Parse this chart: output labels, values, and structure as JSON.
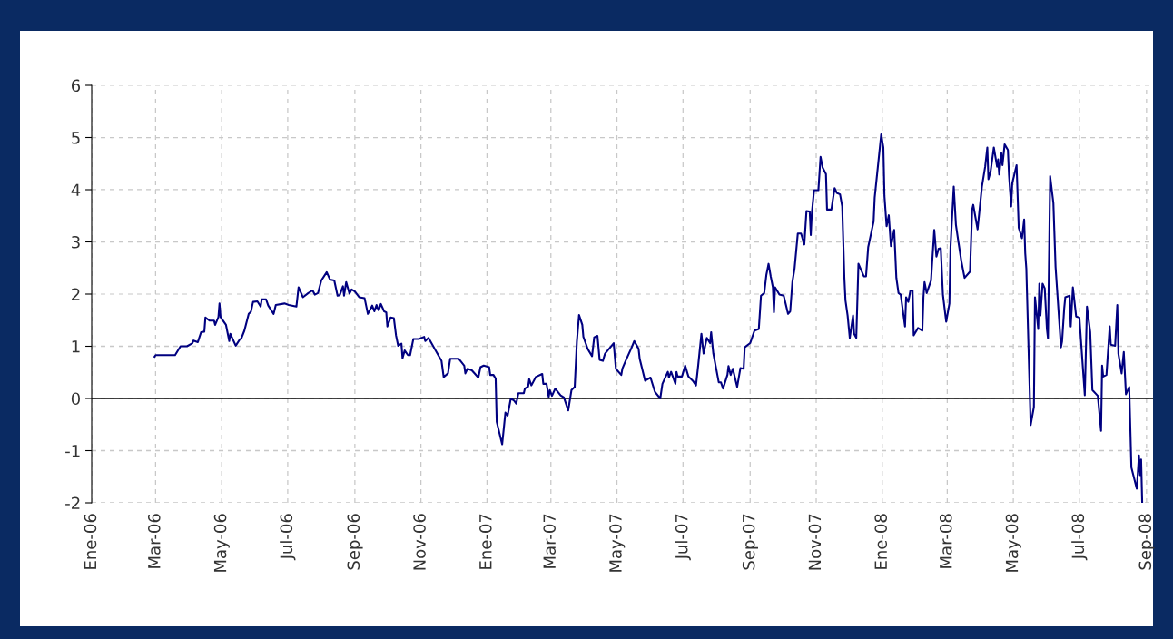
{
  "chart_data": {
    "type": "line",
    "x": [
      "2006-02-28",
      "2006-03-01",
      "2006-03-19",
      "2006-03-24",
      "2006-03-30",
      "2006-04-04",
      "2006-04-05",
      "2006-04-09",
      "2006-04-12",
      "2006-04-15",
      "2006-04-16",
      "2006-04-20",
      "2006-04-24",
      "2006-04-25",
      "2006-04-28",
      "2006-04-29",
      "2006-04-30",
      "2006-05-05",
      "2006-05-08",
      "2006-05-09",
      "2006-05-14",
      "2006-05-18",
      "2006-05-19",
      "2006-05-22",
      "2006-05-26",
      "2006-05-28",
      "2006-05-30",
      "2006-06-03",
      "2006-06-06",
      "2006-06-07",
      "2006-06-11",
      "2006-06-13",
      "2006-06-18",
      "2006-06-20",
      "2006-06-28",
      "2006-07-02",
      "2006-07-09",
      "2006-07-11",
      "2006-07-15",
      "2006-07-20",
      "2006-07-24",
      "2006-07-26",
      "2006-07-29",
      "2006-08-01",
      "2006-08-06",
      "2006-08-09",
      "2006-08-13",
      "2006-08-16",
      "2006-08-18",
      "2006-08-21",
      "2006-08-22",
      "2006-08-24",
      "2006-08-27",
      "2006-08-29",
      "2006-09-01",
      "2006-09-05",
      "2006-09-10",
      "2006-09-13",
      "2006-09-17",
      "2006-09-19",
      "2006-09-21",
      "2006-09-23",
      "2006-09-25",
      "2006-09-28",
      "2006-09-30",
      "2006-10-01",
      "2006-10-04",
      "2006-10-07",
      "2006-10-09",
      "2006-10-11",
      "2006-10-14",
      "2006-10-15",
      "2006-10-17",
      "2006-10-20",
      "2006-10-22",
      "2006-10-25",
      "2006-10-30",
      "2006-11-04",
      "2006-11-05",
      "2006-11-08",
      "2006-11-17",
      "2006-11-20",
      "2006-11-22",
      "2006-11-26",
      "2006-11-28",
      "2006-12-06",
      "2006-12-11",
      "2006-12-12",
      "2006-12-14",
      "2006-12-18",
      "2006-12-24",
      "2006-12-26",
      "2006-12-29",
      "2007-01-03",
      "2007-01-04",
      "2007-01-07",
      "2007-01-09",
      "2007-01-10",
      "2007-01-15",
      "2007-01-18",
      "2007-01-20",
      "2007-01-23",
      "2007-01-26",
      "2007-01-28",
      "2007-01-30",
      "2007-02-04",
      "2007-02-05",
      "2007-02-08",
      "2007-02-09",
      "2007-02-11",
      "2007-02-15",
      "2007-02-21",
      "2007-02-22",
      "2007-02-25",
      "2007-02-27",
      "2007-02-28",
      "2007-03-02",
      "2007-03-05",
      "2007-03-10",
      "2007-03-13",
      "2007-03-17",
      "2007-03-20",
      "2007-03-23",
      "2007-03-25",
      "2007-03-27",
      "2007-03-30",
      "2007-03-31",
      "2007-04-04",
      "2007-04-08",
      "2007-04-10",
      "2007-04-13",
      "2007-04-15",
      "2007-04-18",
      "2007-04-20",
      "2007-04-28",
      "2007-04-30",
      "2007-05-05",
      "2007-05-06",
      "2007-05-09",
      "2007-05-14",
      "2007-05-17",
      "2007-05-21",
      "2007-05-22",
      "2007-05-27",
      "2007-06-01",
      "2007-06-05",
      "2007-06-10",
      "2007-06-12",
      "2007-06-17",
      "2007-06-18",
      "2007-06-20",
      "2007-06-24",
      "2007-06-25",
      "2007-06-26",
      "2007-06-30",
      "2007-07-03",
      "2007-07-06",
      "2007-07-10",
      "2007-07-13",
      "2007-07-15",
      "2007-07-18",
      "2007-07-20",
      "2007-07-23",
      "2007-07-26",
      "2007-07-27",
      "2007-07-29",
      "2007-08-03",
      "2007-08-05",
      "2007-08-07",
      "2007-08-11",
      "2007-08-12",
      "2007-08-14",
      "2007-08-16",
      "2007-08-20",
      "2007-08-23",
      "2007-08-26",
      "2007-08-27",
      "2007-09-01",
      "2007-09-05",
      "2007-09-09",
      "2007-09-11",
      "2007-09-14",
      "2007-09-16",
      "2007-09-18",
      "2007-09-20",
      "2007-09-22",
      "2007-09-23",
      "2007-09-24",
      "2007-09-28",
      "2007-10-02",
      "2007-10-06",
      "2007-10-08",
      "2007-10-10",
      "2007-10-12",
      "2007-10-15",
      "2007-10-18",
      "2007-10-21",
      "2007-10-23",
      "2007-10-26",
      "2007-10-27",
      "2007-10-28",
      "2007-10-30",
      "2007-11-03",
      "2007-11-05",
      "2007-11-07",
      "2007-11-10",
      "2007-11-11",
      "2007-11-15",
      "2007-11-18",
      "2007-11-20",
      "2007-11-23",
      "2007-11-25",
      "2007-11-27",
      "2007-11-28",
      "2007-11-30",
      "2007-12-02",
      "2007-12-05",
      "2007-12-06",
      "2007-12-08",
      "2007-12-10",
      "2007-12-15",
      "2007-12-17",
      "2007-12-19",
      "2007-12-24",
      "2007-12-25",
      "2007-12-31",
      "2008-01-02",
      "2008-01-03",
      "2008-01-05",
      "2008-01-07",
      "2008-01-09",
      "2008-01-12",
      "2008-01-14",
      "2008-01-16",
      "2008-01-18",
      "2008-01-22",
      "2008-01-23",
      "2008-01-25",
      "2008-01-27",
      "2008-01-29",
      "2008-01-30",
      "2008-02-03",
      "2008-02-07",
      "2008-02-08",
      "2008-02-09",
      "2008-02-11",
      "2008-02-15",
      "2008-02-18",
      "2008-02-20",
      "2008-02-22",
      "2008-02-24",
      "2008-02-26",
      "2008-02-29",
      "2008-03-03",
      "2008-03-04",
      "2008-03-07",
      "2008-03-09",
      "2008-03-11",
      "2008-03-14",
      "2008-03-17",
      "2008-03-22",
      "2008-03-24",
      "2008-03-25",
      "2008-03-29",
      "2008-04-02",
      "2008-04-05",
      "2008-04-07",
      "2008-04-08",
      "2008-04-10",
      "2008-04-13",
      "2008-04-16",
      "2008-04-17",
      "2008-04-18",
      "2008-04-20",
      "2008-04-21",
      "2008-04-23",
      "2008-04-26",
      "2008-04-27",
      "2008-04-29",
      "2008-04-30",
      "2008-05-04",
      "2008-05-06",
      "2008-05-09",
      "2008-05-11",
      "2008-05-12",
      "2008-05-13",
      "2008-05-17",
      "2008-05-20",
      "2008-05-21",
      "2008-05-24",
      "2008-05-25",
      "2008-05-26",
      "2008-05-28",
      "2008-05-30",
      "2008-06-01",
      "2008-06-02",
      "2008-06-04",
      "2008-06-07",
      "2008-06-09",
      "2008-06-14",
      "2008-06-15",
      "2008-06-17",
      "2008-06-18",
      "2008-06-22",
      "2008-06-23",
      "2008-06-25",
      "2008-06-28",
      "2008-07-01",
      "2008-07-06",
      "2008-07-08",
      "2008-07-11",
      "2008-07-13",
      "2008-07-18",
      "2008-07-21",
      "2008-07-22",
      "2008-07-23",
      "2008-07-26",
      "2008-07-29",
      "2008-07-30",
      "2008-08-03",
      "2008-08-05",
      "2008-08-06",
      "2008-08-09",
      "2008-08-11",
      "2008-08-13",
      "2008-08-16",
      "2008-08-18",
      "2008-08-23",
      "2008-08-25",
      "2008-08-26",
      "2008-08-27",
      "2008-08-28"
    ],
    "series": [
      {
        "color": "#000080",
        "values": [
          0.8,
          0.83,
          0.83,
          1.0,
          1.0,
          1.06,
          1.11,
          1.08,
          1.27,
          1.28,
          1.55,
          1.49,
          1.49,
          1.41,
          1.56,
          1.82,
          1.56,
          1.41,
          1.1,
          1.24,
          1.01,
          1.14,
          1.14,
          1.3,
          1.62,
          1.66,
          1.85,
          1.86,
          1.76,
          1.9,
          1.9,
          1.78,
          1.62,
          1.79,
          1.82,
          1.79,
          1.76,
          2.13,
          1.94,
          2.02,
          2.07,
          1.99,
          2.02,
          2.26,
          2.42,
          2.28,
          2.26,
          1.97,
          1.98,
          2.15,
          1.97,
          2.23,
          2.01,
          2.09,
          2.05,
          1.94,
          1.92,
          1.62,
          1.78,
          1.67,
          1.79,
          1.69,
          1.81,
          1.67,
          1.65,
          1.38,
          1.55,
          1.54,
          1.21,
          1.01,
          1.05,
          0.77,
          0.92,
          0.83,
          0.83,
          1.14,
          1.14,
          1.18,
          1.1,
          1.16,
          0.83,
          0.72,
          0.41,
          0.48,
          0.76,
          0.76,
          0.63,
          0.48,
          0.57,
          0.54,
          0.4,
          0.6,
          0.63,
          0.6,
          0.45,
          0.45,
          0.38,
          -0.45,
          -0.88,
          -0.27,
          -0.33,
          0.0,
          -0.04,
          -0.1,
          0.1,
          0.1,
          0.19,
          0.23,
          0.37,
          0.25,
          0.41,
          0.47,
          0.28,
          0.28,
          0.03,
          0.16,
          0.05,
          0.19,
          0.06,
          0.02,
          -0.23,
          0.16,
          0.22,
          1.09,
          1.6,
          1.41,
          1.18,
          0.95,
          0.81,
          1.17,
          1.2,
          0.74,
          0.72,
          0.86,
          1.06,
          0.57,
          0.45,
          0.57,
          0.72,
          0.95,
          1.1,
          0.95,
          0.76,
          0.34,
          0.4,
          0.13,
          0.0,
          0.28,
          0.51,
          0.4,
          0.51,
          0.28,
          0.51,
          0.42,
          0.42,
          0.63,
          0.42,
          0.34,
          0.25,
          0.63,
          1.24,
          0.86,
          1.16,
          1.06,
          1.27,
          0.86,
          0.31,
          0.31,
          0.19,
          0.45,
          0.62,
          0.45,
          0.57,
          0.22,
          0.58,
          0.57,
          0.98,
          1.06,
          1.3,
          1.33,
          1.97,
          2.02,
          2.37,
          2.58,
          2.34,
          2.13,
          1.65,
          2.13,
          1.99,
          1.97,
          1.62,
          1.67,
          2.23,
          2.49,
          3.16,
          3.16,
          2.95,
          3.59,
          3.58,
          3.13,
          3.56,
          3.99,
          3.99,
          4.63,
          4.42,
          4.3,
          3.62,
          3.62,
          4.03,
          3.94,
          3.91,
          3.68,
          2.31,
          1.88,
          1.59,
          1.16,
          1.59,
          1.24,
          1.16,
          2.58,
          2.34,
          2.34,
          2.9,
          3.39,
          3.85,
          5.06,
          4.81,
          3.88,
          3.3,
          3.51,
          2.92,
          3.23,
          2.31,
          2.02,
          1.99,
          1.38,
          1.94,
          1.85,
          2.07,
          2.07,
          1.21,
          1.35,
          1.3,
          1.94,
          2.23,
          2.02,
          2.26,
          3.23,
          2.72,
          2.87,
          2.88,
          1.99,
          1.47,
          1.82,
          2.9,
          4.06,
          3.33,
          3.04,
          2.63,
          2.31,
          2.43,
          3.62,
          3.71,
          3.24,
          4.06,
          4.44,
          4.81,
          4.2,
          4.35,
          4.81,
          4.44,
          4.58,
          4.29,
          4.7,
          4.47,
          4.87,
          4.76,
          4.29,
          3.68,
          4.12,
          4.47,
          3.27,
          3.07,
          3.43,
          2.78,
          2.49,
          -0.51,
          -0.16,
          1.94,
          1.33,
          2.2,
          1.59,
          2.2,
          2.11,
          1.33,
          1.15,
          4.26,
          3.74,
          2.52,
          0.98,
          1.09,
          1.73,
          1.94,
          1.97,
          1.38,
          2.13,
          1.57,
          1.55,
          0.06,
          1.76,
          1.27,
          0.16,
          0.05,
          -0.62,
          0.63,
          0.42,
          0.45,
          1.38,
          1.03,
          1.01,
          1.79,
          0.86,
          0.48,
          0.89,
          0.08,
          0.22,
          -1.32,
          -1.73,
          -1.09,
          -1.47,
          -1.17,
          -2.0
        ]
      }
    ],
    "xlim": [
      "2006-01-01",
      "2008-09-07"
    ],
    "xticks": [
      {
        "value": "2006-01-01",
        "label": "Ene-06"
      },
      {
        "value": "2006-03-01",
        "label": "Mar-06"
      },
      {
        "value": "2006-05-01",
        "label": "May-06"
      },
      {
        "value": "2006-07-01",
        "label": "Jul-06"
      },
      {
        "value": "2006-09-01",
        "label": "Sep-06"
      },
      {
        "value": "2006-11-01",
        "label": "Nov-06"
      },
      {
        "value": "2007-01-01",
        "label": "Ene-07"
      },
      {
        "value": "2007-03-01",
        "label": "Mar-07"
      },
      {
        "value": "2007-05-01",
        "label": "May-07"
      },
      {
        "value": "2007-07-01",
        "label": "Jul-07"
      },
      {
        "value": "2007-09-01",
        "label": "Sep-07"
      },
      {
        "value": "2007-11-01",
        "label": "Nov-07"
      },
      {
        "value": "2008-01-01",
        "label": "Ene-08"
      },
      {
        "value": "2008-03-01",
        "label": "Mar-08"
      },
      {
        "value": "2008-05-01",
        "label": "May-08"
      },
      {
        "value": "2008-07-01",
        "label": "Jul-08"
      },
      {
        "value": "2008-09-01",
        "label": "Sep-08"
      }
    ],
    "ylim": [
      -2,
      6
    ],
    "yticks": [
      -2,
      -1,
      0,
      1,
      2,
      3,
      4,
      5,
      6
    ],
    "ref_lines": [
      {
        "axis": "y",
        "value": 0,
        "color": "#000000"
      }
    ],
    "grid": true,
    "marker": "none",
    "line_style": "solid"
  }
}
